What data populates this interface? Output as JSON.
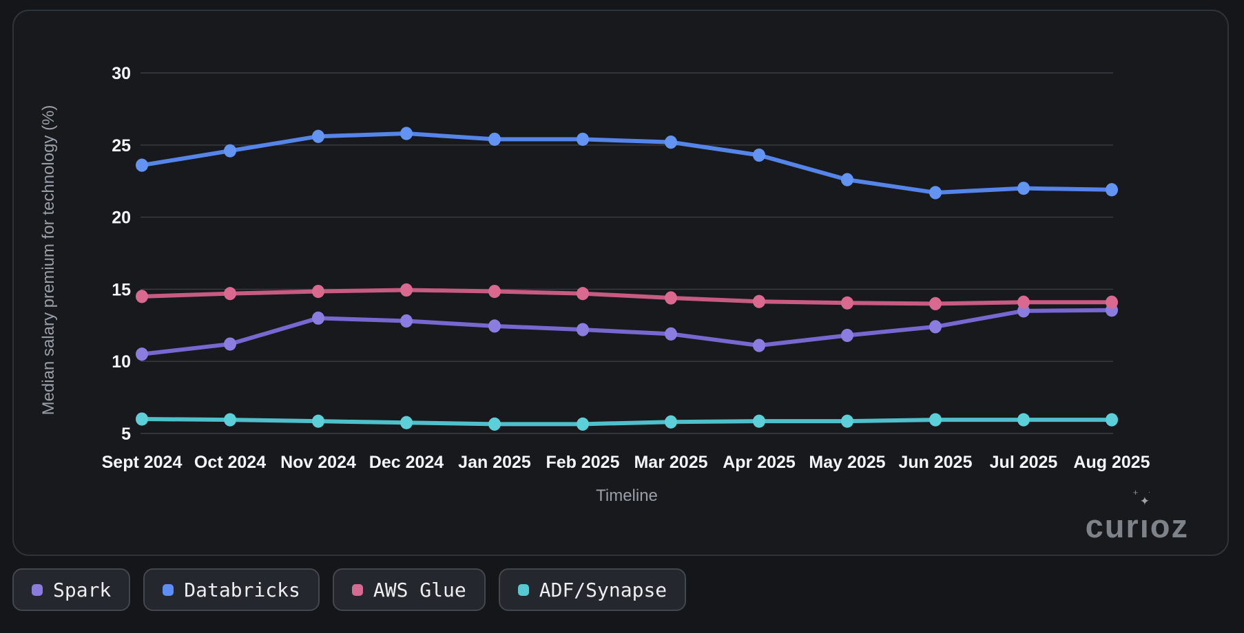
{
  "page": {
    "background": "#14161a"
  },
  "panel": {
    "background": "#17191d",
    "border_color": "#2f333a"
  },
  "watermark": {
    "text": "curioz",
    "color": "#7e8289",
    "sparkle_icon": "✦",
    "plus_icon": "+",
    "dot_icon": "·"
  },
  "legend": {
    "items": [
      {
        "id": "spark",
        "label": "Spark",
        "color": "#8a7bdd"
      },
      {
        "id": "databricks",
        "label": "Databricks",
        "color": "#5d8ef6"
      },
      {
        "id": "aws-glue",
        "label": "AWS Glue",
        "color": "#d66b92"
      },
      {
        "id": "adf-synapse",
        "label": "ADF/Synapse",
        "color": "#55c8d2"
      }
    ]
  },
  "chart_data": {
    "type": "line",
    "title": "",
    "xlabel": "Timeline",
    "ylabel": "Median salary premium for technology (%)",
    "categories": [
      "Sept 2024",
      "Oct 2024",
      "Nov 2024",
      "Dec 2024",
      "Jan 2025",
      "Feb 2025",
      "Mar 2025",
      "Apr 2025",
      "May 2025",
      "Jun 2025",
      "Jul 2025",
      "Aug 2025"
    ],
    "yticks": [
      30,
      25,
      20,
      15,
      10,
      5
    ],
    "ylim": [
      5,
      30
    ],
    "grid": true,
    "grid_color": "#3a3e44",
    "tick_label_color": "#f4f5f7",
    "axis_title_color": "#999fa8",
    "legend_position": "bottom-left-outside",
    "series": [
      {
        "name": "Spark",
        "color": "#7668d0",
        "dot_color": "#8b7ce0",
        "values": [
          10.5,
          11.2,
          13.0,
          12.8,
          12.45,
          12.2,
          11.9,
          11.1,
          11.8,
          12.4,
          13.5,
          13.55
        ]
      },
      {
        "name": "Databricks",
        "color": "#5585e8",
        "dot_color": "#6394f2",
        "values": [
          23.6,
          24.6,
          25.6,
          25.8,
          25.4,
          25.4,
          25.2,
          24.3,
          22.6,
          21.7,
          22.0,
          21.9
        ]
      },
      {
        "name": "AWS Glue",
        "color": "#c75b80",
        "dot_color": "#d9698f",
        "values": [
          14.5,
          14.7,
          14.85,
          14.95,
          14.85,
          14.7,
          14.4,
          14.15,
          14.05,
          14.0,
          14.1,
          14.1
        ]
      },
      {
        "name": "ADF/Synapse",
        "color": "#4fc0cb",
        "dot_color": "#5ccfd9",
        "values": [
          6.0,
          5.95,
          5.85,
          5.75,
          5.65,
          5.65,
          5.8,
          5.85,
          5.85,
          5.95,
          5.95,
          5.95
        ]
      }
    ]
  }
}
